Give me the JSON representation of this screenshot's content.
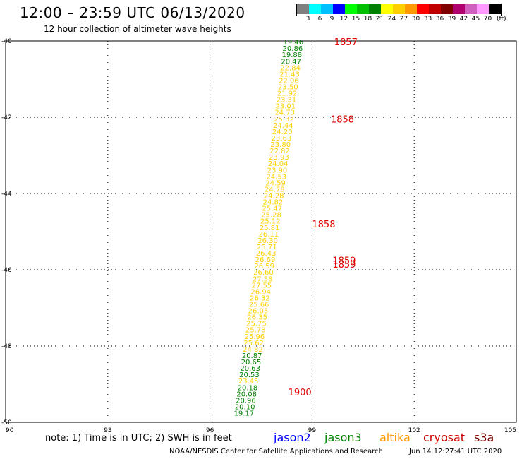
{
  "header": {
    "title": "12:00 – 23:59 UTC 06/13/2020",
    "subtitle": "12 hour collection of altimeter wave heights"
  },
  "color_scale": {
    "unit": "(ft)",
    "swatches": [
      {
        "label": "3",
        "color": "#808080"
      },
      {
        "label": "6",
        "color": "#00ffff"
      },
      {
        "label": "9",
        "color": "#00bfff"
      },
      {
        "label": "12",
        "color": "#0000ff"
      },
      {
        "label": "15",
        "color": "#00ff00"
      },
      {
        "label": "18",
        "color": "#00c000"
      },
      {
        "label": "21",
        "color": "#008000"
      },
      {
        "label": "24",
        "color": "#ffff00"
      },
      {
        "label": "27",
        "color": "#ffd000"
      },
      {
        "label": "30",
        "color": "#ff9900"
      },
      {
        "label": "33",
        "color": "#ff0000"
      },
      {
        "label": "36",
        "color": "#c00000"
      },
      {
        "label": "39",
        "color": "#800000"
      },
      {
        "label": "42",
        "color": "#b00070"
      },
      {
        "label": "45",
        "color": "#d060c0"
      },
      {
        "label": "70",
        "color": "#ff99ff"
      },
      {
        "label": "",
        "color": "#000000"
      }
    ]
  },
  "map": {
    "lon_ticks": [
      "90",
      "93",
      "96",
      "99",
      "102",
      "105"
    ],
    "lat_ticks": [
      "-40",
      "-42",
      "-44",
      "-46",
      "-48",
      "-50"
    ],
    "lon_range": [
      90,
      105
    ],
    "lat_range": [
      -40,
      -50
    ],
    "track_labels": [
      {
        "text": "19.46",
        "color": "#008000"
      },
      {
        "text": "20.86",
        "color": "#008000"
      },
      {
        "text": "19.88",
        "color": "#008000"
      },
      {
        "text": "20.47",
        "color": "#008000"
      },
      {
        "text": "22.84",
        "color": "#ffd000"
      },
      {
        "text": "21.43",
        "color": "#ffd000"
      },
      {
        "text": "22.06",
        "color": "#ffd000"
      },
      {
        "text": "23.50",
        "color": "#ffd000"
      },
      {
        "text": "21.92",
        "color": "#ffd000"
      },
      {
        "text": "23.31",
        "color": "#ffd000"
      },
      {
        "text": "23.01",
        "color": "#ffd000"
      },
      {
        "text": "24.73",
        "color": "#ffd000"
      },
      {
        "text": "25.32",
        "color": "#ffd000"
      },
      {
        "text": "24.44",
        "color": "#ffd000"
      },
      {
        "text": "24.20",
        "color": "#ffd000"
      },
      {
        "text": "23.63",
        "color": "#ffd000"
      },
      {
        "text": "23.80",
        "color": "#ffd000"
      },
      {
        "text": "22.82",
        "color": "#ffd000"
      },
      {
        "text": "23.93",
        "color": "#ffd000"
      },
      {
        "text": "24.04",
        "color": "#ffd000"
      },
      {
        "text": "23.90",
        "color": "#ffd000"
      },
      {
        "text": "24.53",
        "color": "#ffd000"
      },
      {
        "text": "24.59",
        "color": "#ffd000"
      },
      {
        "text": "24.78",
        "color": "#ffd000"
      },
      {
        "text": "24.28",
        "color": "#ffd000"
      },
      {
        "text": "24.82",
        "color": "#ffd000"
      },
      {
        "text": "25.47",
        "color": "#ffd000"
      },
      {
        "text": "25.28",
        "color": "#ffd000"
      },
      {
        "text": "25.12",
        "color": "#ffd000"
      },
      {
        "text": "25.81",
        "color": "#ffd000"
      },
      {
        "text": "26.11",
        "color": "#ffd000"
      },
      {
        "text": "26.30",
        "color": "#ffd000"
      },
      {
        "text": "25.71",
        "color": "#ffd000"
      },
      {
        "text": "26.43",
        "color": "#ffd000"
      },
      {
        "text": "26.69",
        "color": "#ffd000"
      },
      {
        "text": "26.59",
        "color": "#ffd000"
      },
      {
        "text": "26.60",
        "color": "#ffd000"
      },
      {
        "text": "27.58",
        "color": "#ffd000"
      },
      {
        "text": "27.55",
        "color": "#ffd000"
      },
      {
        "text": "26.94",
        "color": "#ffd000"
      },
      {
        "text": "26.32",
        "color": "#ffd000"
      },
      {
        "text": "25.66",
        "color": "#ffd000"
      },
      {
        "text": "26.05",
        "color": "#ffd000"
      },
      {
        "text": "26.35",
        "color": "#ffd000"
      },
      {
        "text": "25.75",
        "color": "#ffd000"
      },
      {
        "text": "25.78",
        "color": "#ffd000"
      },
      {
        "text": "25.96",
        "color": "#ffd000"
      },
      {
        "text": "25.62",
        "color": "#ffd000"
      },
      {
        "text": "24.82",
        "color": "#ffd000"
      },
      {
        "text": "20.87",
        "color": "#008000"
      },
      {
        "text": "20.65",
        "color": "#008000"
      },
      {
        "text": "20.63",
        "color": "#008000"
      },
      {
        "text": "20.53",
        "color": "#008000"
      },
      {
        "text": "23.45",
        "color": "#ffd000"
      },
      {
        "text": "20.18",
        "color": "#008000"
      },
      {
        "text": "20.08",
        "color": "#008000"
      },
      {
        "text": "20.96",
        "color": "#008000"
      },
      {
        "text": "20.10",
        "color": "#008000"
      },
      {
        "text": "19.17",
        "color": "#008000"
      }
    ],
    "time_labels": [
      "1857",
      "1858",
      "1858",
      "1859",
      "1859",
      "1900"
    ]
  },
  "footer": {
    "note": "note:  1) Time is in UTC;  2) SWH is in feet",
    "satellites": [
      {
        "name": "jason2",
        "color": "#0000ff"
      },
      {
        "name": "jason3",
        "color": "#008000"
      },
      {
        "name": "altika",
        "color": "#ff9900"
      },
      {
        "name": "cryosat",
        "color": "#cc0000"
      },
      {
        "name": "s3a",
        "color": "#800000"
      }
    ],
    "credit": "NOAA/NESDIS Center for Satellite Applications and Research",
    "timestamp": "Jun 14 12:27:41 UTC 2020"
  }
}
